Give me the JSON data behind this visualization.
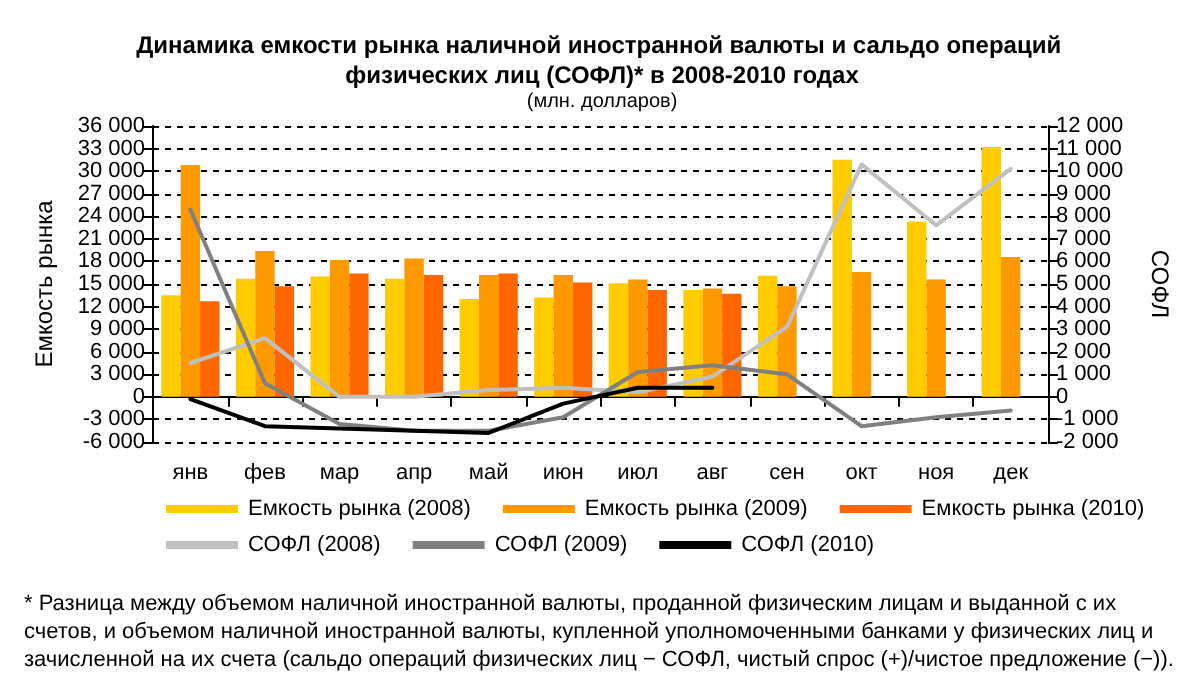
{
  "chart_data": {
    "type": "bar",
    "title": "Динамика емкости рынка наличной иностранной валюты и сальдо операций физических лиц (СОФЛ)* в 2008-2010 годах",
    "subtitle": "(млн. долларов)",
    "ylabel": "Емкость рынка",
    "y2label": "СОФЛ",
    "categories": [
      "янв",
      "фев",
      "мар",
      "апр",
      "май",
      "июн",
      "июл",
      "авг",
      "сен",
      "окт",
      "ноя",
      "дек"
    ],
    "series": [
      {
        "name": "Емкость рынка (2008)",
        "color": "#ffcc00",
        "values": [
          13500,
          15700,
          16000,
          15700,
          13000,
          13200,
          15100,
          14200,
          16100,
          31500,
          23300,
          33200
        ]
      },
      {
        "name": "Емкость рынка (2009)",
        "color": "#ff9900",
        "values": [
          30800,
          19400,
          18200,
          18400,
          16200,
          16200,
          15600,
          14400,
          14700,
          16600,
          15600,
          18600
        ]
      },
      {
        "name": "Емкость рынка (2010)",
        "color": "#ff6600",
        "values": [
          12700,
          14700,
          16400,
          16200,
          16400,
          15200,
          14200,
          13700,
          null,
          null,
          null,
          null
        ]
      },
      {
        "name": "СОФЛ (2008)",
        "type": "line",
        "axis": "y2",
        "color": "#c0c0c0",
        "values": [
          1500,
          2600,
          0,
          0,
          300,
          400,
          200,
          900,
          3100,
          10300,
          7600,
          10100
        ]
      },
      {
        "name": "СОФЛ (2009)",
        "type": "line",
        "axis": "y2",
        "color": "#808080",
        "values": [
          8300,
          600,
          -1200,
          -1500,
          -1500,
          -900,
          1100,
          1400,
          1000,
          -1300,
          -900,
          -600
        ]
      },
      {
        "name": "СОФЛ (2010)",
        "type": "line",
        "axis": "y2",
        "color": "#000000",
        "values": [
          -100,
          -1300,
          -1400,
          -1500,
          -1600,
          -300,
          400,
          400,
          null,
          null,
          null,
          null
        ]
      }
    ],
    "ylim": [
      -6000,
      36000
    ],
    "yticks": [
      {
        "value": -6000,
        "label": "-6 000"
      },
      {
        "value": -3000,
        "label": "-3 000"
      },
      0,
      {
        "value": 3000,
        "label": "3 000"
      },
      {
        "value": 6000,
        "label": "6 000"
      },
      {
        "value": 9000,
        "label": "9 000"
      },
      {
        "value": 12000,
        "label": "12 000"
      },
      {
        "value": 15000,
        "label": "15 000"
      },
      {
        "value": 18000,
        "label": "18 000"
      },
      {
        "value": 21000,
        "label": "21 000"
      },
      {
        "value": 24000,
        "label": "24 000"
      },
      {
        "value": 27000,
        "label": "27 000"
      },
      {
        "value": 30000,
        "label": "30 000"
      },
      {
        "value": 33000,
        "label": "33 000"
      },
      {
        "value": 36000,
        "label": "36 000"
      }
    ],
    "y2lim": [
      -2000,
      12000
    ],
    "y2ticks": [
      {
        "value": -2000,
        "label": "-2 000"
      },
      {
        "value": -1000,
        "label": "-1 000"
      },
      0,
      {
        "value": 1000,
        "label": "1 000"
      },
      {
        "value": 2000,
        "label": "2 000"
      },
      {
        "value": 3000,
        "label": "3 000"
      },
      {
        "value": 4000,
        "label": "4 000"
      },
      {
        "value": 5000,
        "label": "5 000"
      },
      {
        "value": 6000,
        "label": "6 000"
      },
      {
        "value": 7000,
        "label": "7 000"
      },
      {
        "value": 8000,
        "label": "8 000"
      },
      {
        "value": 9000,
        "label": "9 000"
      },
      {
        "value": 10000,
        "label": "10 000"
      },
      {
        "value": 11000,
        "label": "11 000"
      },
      {
        "value": 12000,
        "label": "12 000"
      }
    ],
    "grid": "y",
    "legend": "bottom",
    "marker": "none",
    "line_style": "solid",
    "annotations": [
      "* Разница между объемом наличной иностранной валюты, проданной физическим лицам и выданной с их счетов, и объемом наличной иностранной валюты, купленной уполномоченными банками у физических лиц и зачисленной на их счета (сальдо операций физических лиц − СОФЛ, чистый спрос (+)/чистое предложение (−))."
    ]
  }
}
